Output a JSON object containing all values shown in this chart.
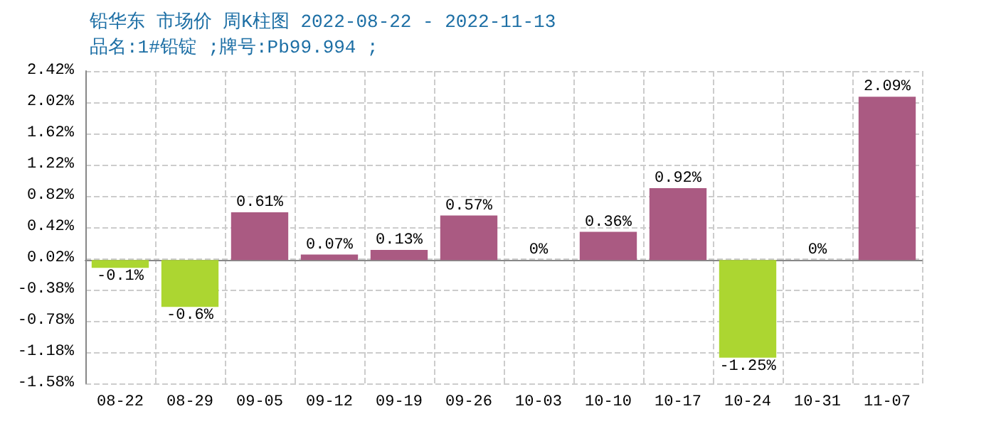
{
  "chart_data": {
    "type": "bar",
    "title": "铅华东 市场价 周K柱图 2022-08-22 - 2022-11-13",
    "subtitle": "品名:1#铅锭 ;牌号:Pb99.994 ;",
    "categories": [
      "08-22",
      "08-29",
      "09-05",
      "09-12",
      "09-19",
      "09-26",
      "10-03",
      "10-10",
      "10-17",
      "10-24",
      "10-31",
      "11-07"
    ],
    "values": [
      -0.1,
      -0.6,
      0.61,
      0.07,
      0.13,
      0.57,
      0,
      0.36,
      0.92,
      -1.25,
      0,
      2.09
    ],
    "value_labels": [
      "-0.1%",
      "-0.6%",
      "0.61%",
      "0.07%",
      "0.13%",
      "0.57%",
      "0%",
      "0.36%",
      "0.92%",
      "-1.25%",
      "0%",
      "2.09%"
    ],
    "colors": [
      "#acd631",
      "#acd631",
      "#aa5a82",
      "#aa5a82",
      "#aa5a82",
      "#aa5a82",
      "#aa5a82",
      "#aa5a82",
      "#aa5a82",
      "#acd631",
      "#aa5a82",
      "#aa5a82"
    ],
    "ylim": [
      -1.58,
      2.42
    ],
    "yticks": [
      {
        "value": -1.58,
        "label": "-1.58%"
      },
      {
        "value": -1.18,
        "label": "-1.18%"
      },
      {
        "value": -0.78,
        "label": "-0.78%"
      },
      {
        "value": -0.38,
        "label": "-0.38%"
      },
      {
        "value": 0.02,
        "label": "0.02%"
      },
      {
        "value": 0.42,
        "label": "0.42%"
      },
      {
        "value": 0.82,
        "label": "0.82%"
      },
      {
        "value": 1.22,
        "label": "1.22%"
      },
      {
        "value": 1.62,
        "label": "1.62%"
      },
      {
        "value": 2.02,
        "label": "2.02%"
      },
      {
        "value": 2.42,
        "label": "2.42%"
      }
    ],
    "grid": true
  }
}
